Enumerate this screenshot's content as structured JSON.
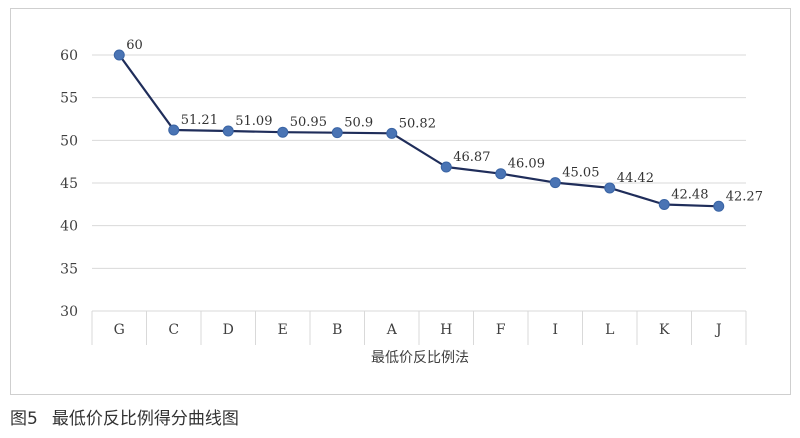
{
  "chart_data": {
    "type": "line",
    "categories": [
      "G",
      "C",
      "D",
      "E",
      "B",
      "A",
      "H",
      "F",
      "I",
      "L",
      "K",
      "J"
    ],
    "series": [
      {
        "values": [
          60,
          51.21,
          51.09,
          50.95,
          50.9,
          50.82,
          46.87,
          46.09,
          45.05,
          44.42,
          42.48,
          42.27
        ]
      }
    ],
    "data_labels": [
      "60",
      "51.21",
      "51.09",
      "50.95",
      "50.9",
      "50.82",
      "46.87",
      "46.09",
      "45.05",
      "44.42",
      "42.48",
      "42.27"
    ],
    "xlabel": "最低价反比例法",
    "ylabel": "",
    "ylim": [
      30,
      60
    ],
    "yticks": [
      30,
      35,
      40,
      45,
      50,
      55,
      60
    ],
    "grid": true,
    "legend": "none",
    "colors": {
      "line": "#1f2d5a",
      "marker": "#4a74b4",
      "grid": "#d9d9d9",
      "axis_text": "#404040"
    }
  },
  "caption": {
    "figure_number": "图5",
    "text": "最低价反比例得分曲线图"
  }
}
